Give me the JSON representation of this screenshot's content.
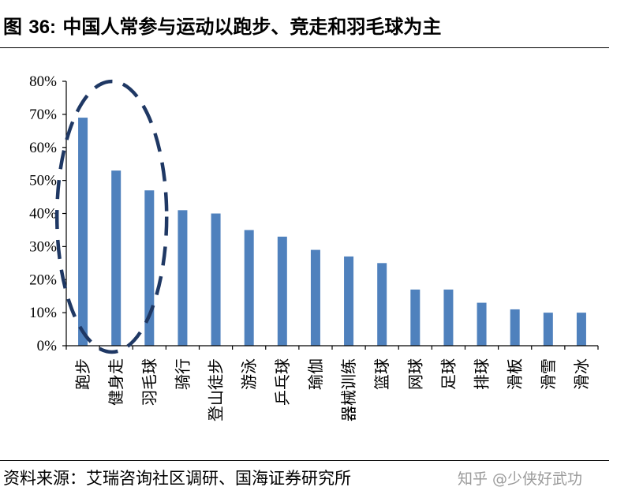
{
  "header": {
    "figure_label": "图 ",
    "figure_number": "36:",
    "title_text": " 中国人常参与运动以跑步、竞走和羽毛球为主"
  },
  "footer": {
    "source": "资料来源：艾瑞咨询社区调研、国海证券研究所",
    "watermark": "知乎 @少侠好武功"
  },
  "colors": {
    "bar": "#4F81BD",
    "highlight_ellipse": "#1F3864",
    "axis": "#000000"
  },
  "chart_data": {
    "type": "bar",
    "categories": [
      "跑步",
      "健身走",
      "羽毛球",
      "骑行",
      "登山徒步",
      "游泳",
      "乒乓球",
      "瑜伽",
      "器械训练",
      "篮球",
      "网球",
      "足球",
      "排球",
      "滑板",
      "滑雪",
      "滑冰"
    ],
    "values": [
      69,
      53,
      47,
      41,
      40,
      35,
      33,
      29,
      27,
      25,
      17,
      17,
      13,
      11,
      10,
      10
    ],
    "unit": "%",
    "ylim": [
      0,
      80
    ],
    "yticks": [
      "0%",
      "10%",
      "20%",
      "30%",
      "40%",
      "50%",
      "60%",
      "70%",
      "80%"
    ],
    "xlabel": "",
    "ylabel": "",
    "grid": false,
    "legend": "none",
    "highlighted_categories": [
      "跑步",
      "健身走",
      "羽毛球"
    ]
  }
}
